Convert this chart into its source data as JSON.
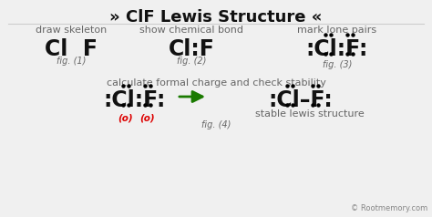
{
  "bg_color": "#f0f0f0",
  "title": " ClF Lewis Structure ",
  "chevron_left": "»",
  "chevron_right": "«",
  "title_fontsize": 13,
  "sub_fontsize": 8,
  "fig_fontsize": 7,
  "mol_fontsize": 17,
  "label1": "draw skeleton",
  "label2": "show chemical bond",
  "label3": "mark lone pairs",
  "label4": "calculate formal charge and check stability",
  "fig1": "fig. (1)",
  "fig2": "fig. (2)",
  "fig3": "fig. (3)",
  "fig4": "fig. (4)",
  "stable": "stable lewis structure",
  "formal": "(o)",
  "formal_color": "#dd0000",
  "arrow_color": "#1a7a00",
  "text_color": "#111111",
  "gray_color": "#666666",
  "copyright": "© Rootmemory.com",
  "fig1_text": "Cl  F",
  "fig2_text": "Cl:F",
  "fig3_text": ":Cl:F:",
  "fig4l_text": ":Cl:F:",
  "fig4r_text": ":Cl–F:"
}
